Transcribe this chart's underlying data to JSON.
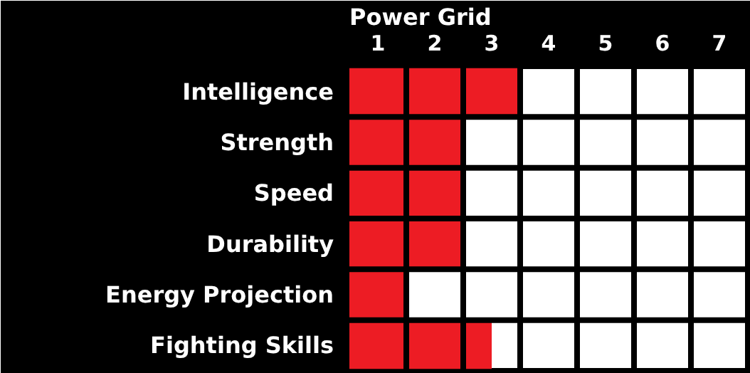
{
  "chart_data": {
    "type": "bar",
    "orientation": "horizontal",
    "title": "Power Grid",
    "categories": [
      "Intelligence",
      "Strength",
      "Speed",
      "Durability",
      "Energy Projection",
      "Fighting Skills"
    ],
    "values": [
      3,
      2,
      2,
      2,
      1,
      2.5
    ],
    "color": "#ed1c24",
    "xlim": [
      0,
      7
    ],
    "xticks": [
      {
        "value": 0.5,
        "label": "1"
      },
      {
        "value": 1.5,
        "label": "2"
      },
      {
        "value": 2.5,
        "label": "3"
      },
      {
        "value": 3.5,
        "label": "4"
      },
      {
        "value": 4.5,
        "label": "5"
      },
      {
        "value": 5.5,
        "label": "6"
      },
      {
        "value": 6.5,
        "label": "7"
      }
    ],
    "grid": false
  }
}
